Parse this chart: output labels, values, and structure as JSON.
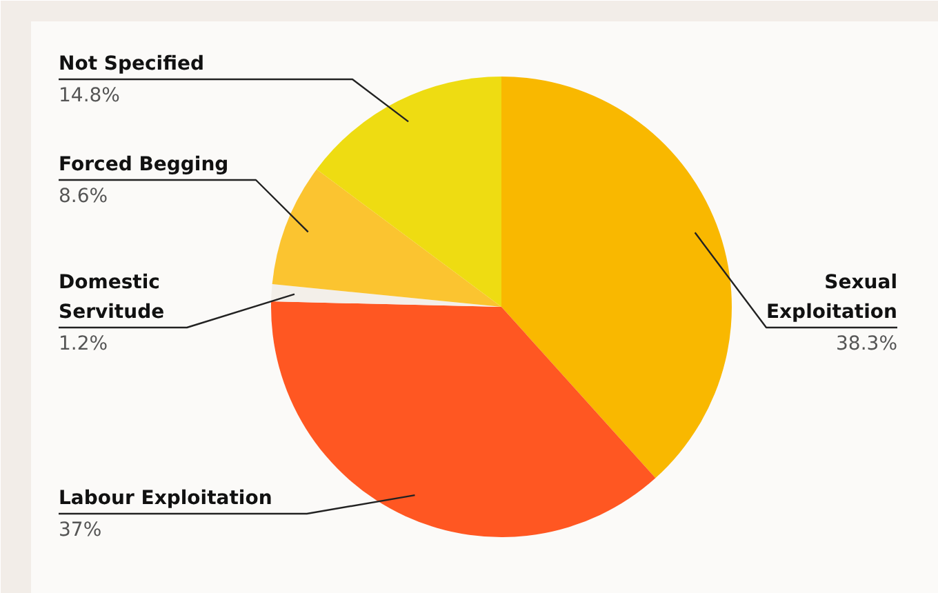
{
  "chart_data": {
    "type": "pie",
    "categories": [
      "Sexual Exploitation",
      "Labour Exploitation",
      "Domestic Servitude",
      "Forced Begging",
      "Not Specified"
    ],
    "values": [
      38.3,
      37,
      1.2,
      8.6,
      14.8
    ],
    "value_labels": [
      "38.3%",
      "37%",
      "1.2%",
      "8.6%",
      "14.8%"
    ],
    "colors": [
      "#f9b800",
      "#ff5722",
      "#f3efe9",
      "#fbc430",
      "#eedc12"
    ]
  }
}
